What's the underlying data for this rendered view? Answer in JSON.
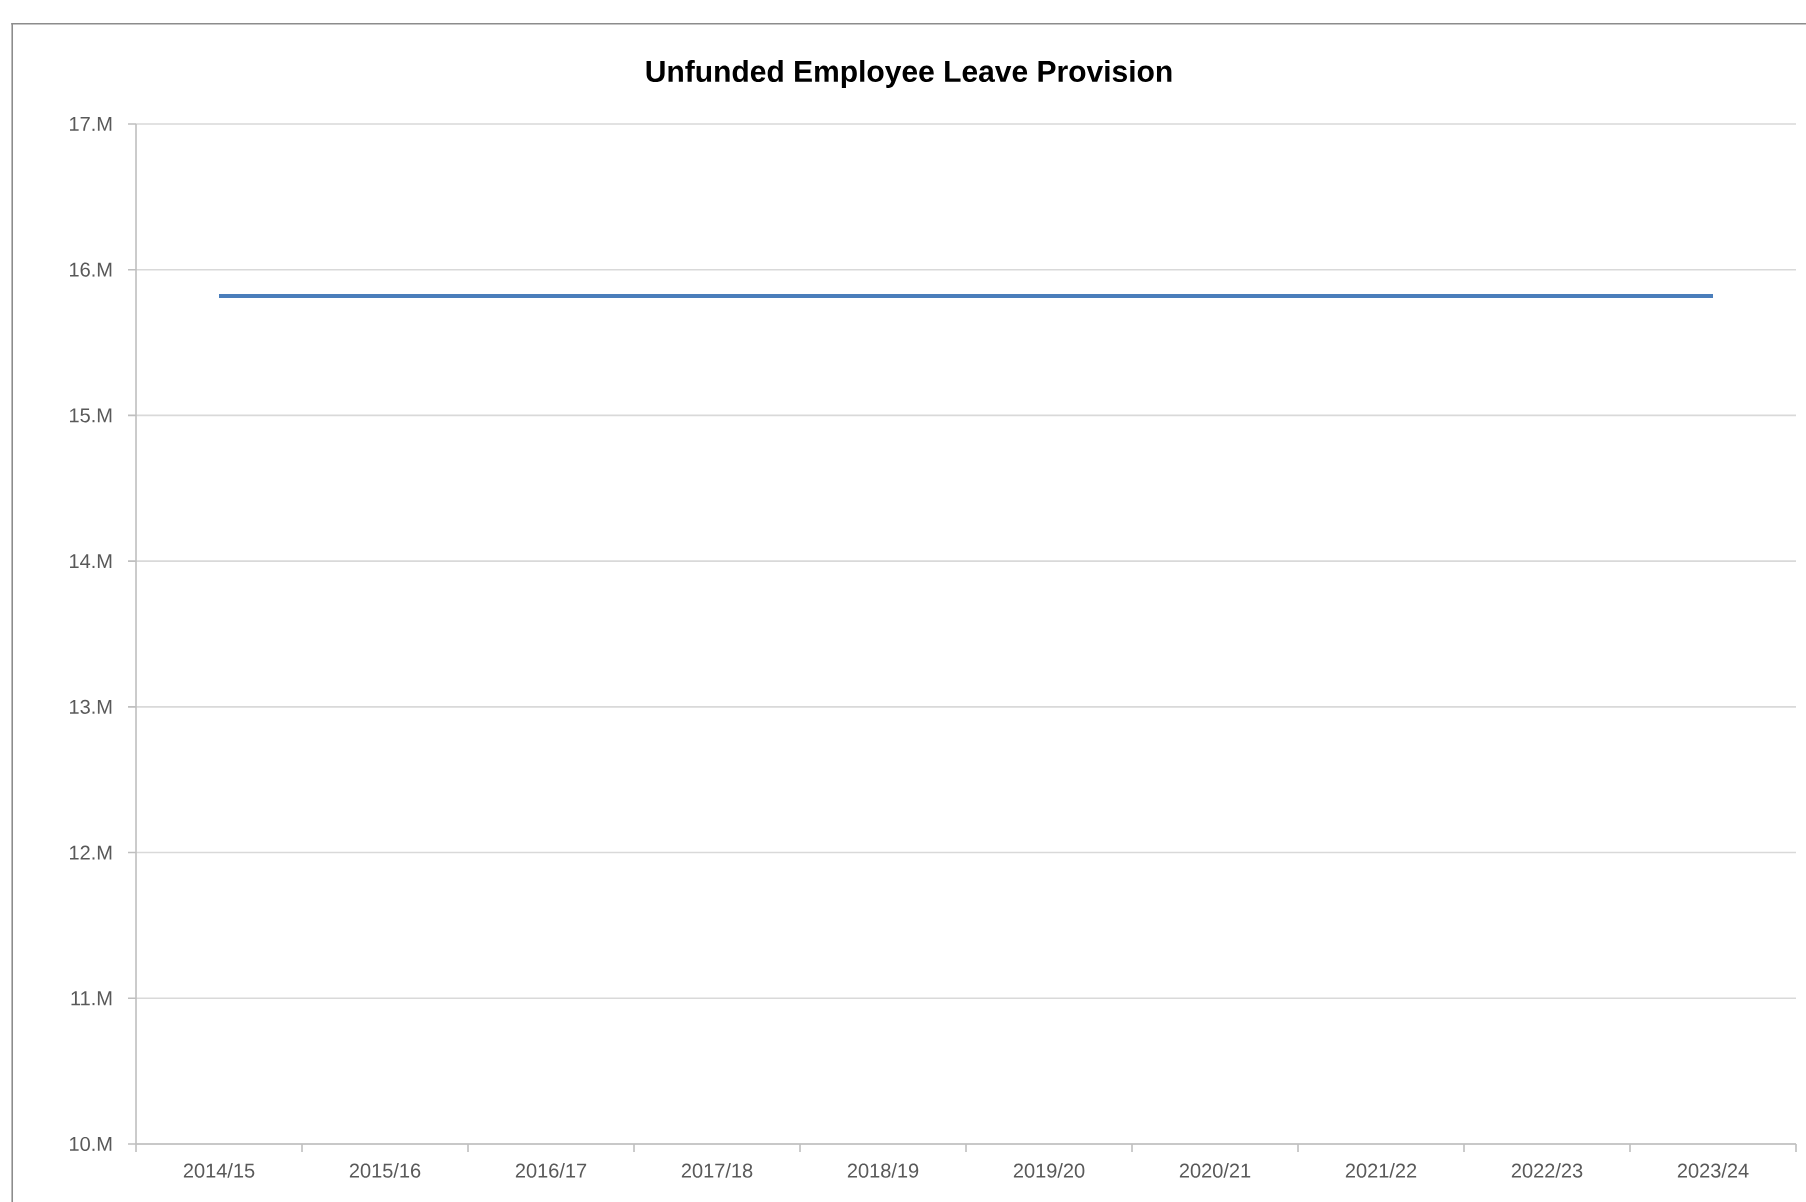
{
  "chart_data": {
    "type": "line",
    "title": "Unfunded Employee Leave Provision",
    "categories": [
      "2014/15",
      "2015/16",
      "2016/17",
      "2017/18",
      "2018/19",
      "2019/20",
      "2020/21",
      "2021/22",
      "2022/23",
      "2023/24"
    ],
    "series": [
      {
        "color": "#4a7ebb",
        "values": [
          15.82,
          15.82,
          15.82,
          15.82,
          15.82,
          15.82,
          15.82,
          15.82,
          15.82,
          15.82
        ]
      }
    ],
    "ylim": [
      10,
      17
    ],
    "yticks": [
      {
        "value": 10,
        "label": "10.M"
      },
      {
        "value": 11,
        "label": "11.M"
      },
      {
        "value": 12,
        "label": "12.M"
      },
      {
        "value": 13,
        "label": "13.M"
      },
      {
        "value": 14,
        "label": "14.M"
      },
      {
        "value": 15,
        "label": "15.M"
      },
      {
        "value": 16,
        "label": "16.M"
      },
      {
        "value": 17,
        "label": "17.M"
      }
    ],
    "grid": "y",
    "marker": "none",
    "line_style": "solid"
  }
}
